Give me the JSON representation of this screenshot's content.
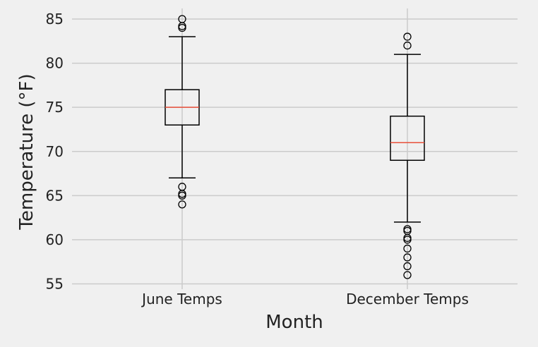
{
  "chart_data": {
    "type": "boxplot",
    "title": "",
    "xlabel": "Month",
    "ylabel": "Temperature (°F)",
    "ylim": [
      54.4,
      86.2
    ],
    "yticks": [
      55,
      60,
      65,
      70,
      75,
      80,
      85
    ],
    "grid": true,
    "categories": [
      "June Temps",
      "December Temps"
    ],
    "boxes": [
      {
        "name": "June Temps",
        "whisker_low": 67,
        "q1": 73,
        "median": 75,
        "q3": 77,
        "whisker_high": 83,
        "outliers": [
          64,
          65,
          65.2,
          66,
          84,
          84.2,
          85
        ]
      },
      {
        "name": "December Temps",
        "whisker_low": 62,
        "q1": 69,
        "median": 71,
        "q3": 74,
        "whisker_high": 81,
        "outliers": [
          56,
          57,
          58,
          59,
          60,
          60.2,
          61,
          61.2,
          82,
          83
        ]
      }
    ],
    "colors": {
      "background": "#f0f0f0",
      "grid": "#cbcbcb",
      "box": "#000000",
      "median": "#e8503a"
    }
  }
}
